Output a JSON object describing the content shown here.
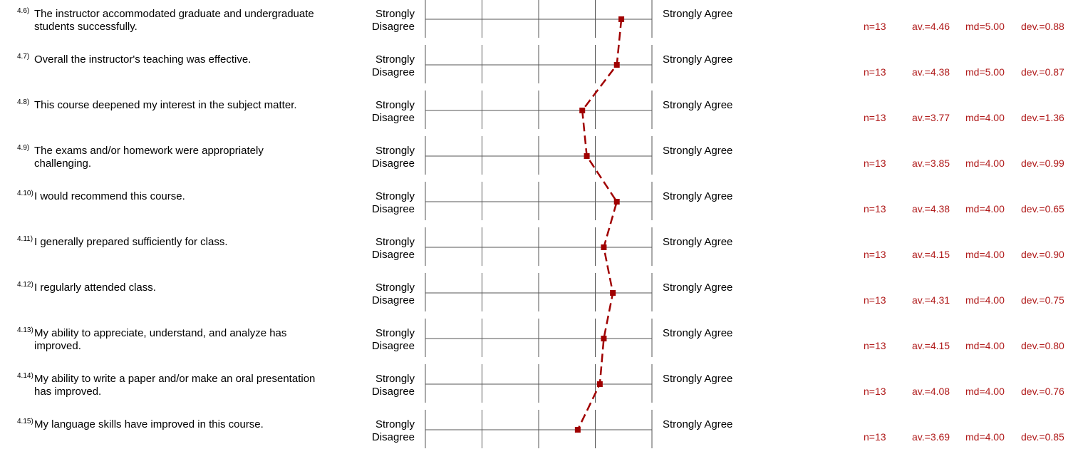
{
  "chart_data": {
    "type": "line",
    "color": "#a00000",
    "xlim": [
      1,
      5
    ],
    "xticks": [
      1,
      2,
      3,
      4,
      5
    ],
    "left_label": "Strongly Disagree",
    "right_label": "Strongly Agree",
    "numbers": [
      "4.6)",
      "4.7)",
      "4.8)",
      "4.9)",
      "4.10)",
      "4.11)",
      "4.12)",
      "4.13)",
      "4.14)",
      "4.15)"
    ],
    "categories": [
      "The instructor accommodated graduate and undergraduate students successfully.",
      "Overall the instructor's teaching was effective.",
      "This course deepened my interest in the subject matter.",
      "The exams and/or homework were appropriately challenging.",
      "I would recommend this course.",
      "I generally prepared sufficiently for class.",
      "I regularly attended class.",
      "My ability to appreciate, understand, and analyze has improved.",
      "My ability to write a paper and/or make an oral presentation has improved.",
      "My language skills have improved in this course."
    ],
    "values": [
      4.46,
      4.38,
      3.77,
      3.85,
      4.38,
      4.15,
      4.31,
      4.15,
      4.08,
      3.69
    ],
    "value_labels": [
      "av.=4.46",
      "av.=4.38",
      "av.=3.77",
      "av.=3.85",
      "av.=4.38",
      "av.=4.15",
      "av.=4.31",
      "av.=4.15",
      "av.=4.08",
      "av.=3.69"
    ],
    "n_labels": [
      "n=13",
      "n=13",
      "n=13",
      "n=13",
      "n=13",
      "n=13",
      "n=13",
      "n=13",
      "n=13",
      "n=13"
    ],
    "md_labels": [
      "md=5.00",
      "md=5.00",
      "md=4.00",
      "md=4.00",
      "md=4.00",
      "md=4.00",
      "md=4.00",
      "md=4.00",
      "md=4.00",
      "md=4.00"
    ],
    "dev_labels": [
      "dev.=0.88",
      "dev.=0.87",
      "dev.=1.36",
      "dev.=0.99",
      "dev.=0.65",
      "dev.=0.90",
      "dev.=0.75",
      "dev.=0.80",
      "dev.=0.76",
      "dev.=0.85"
    ]
  }
}
